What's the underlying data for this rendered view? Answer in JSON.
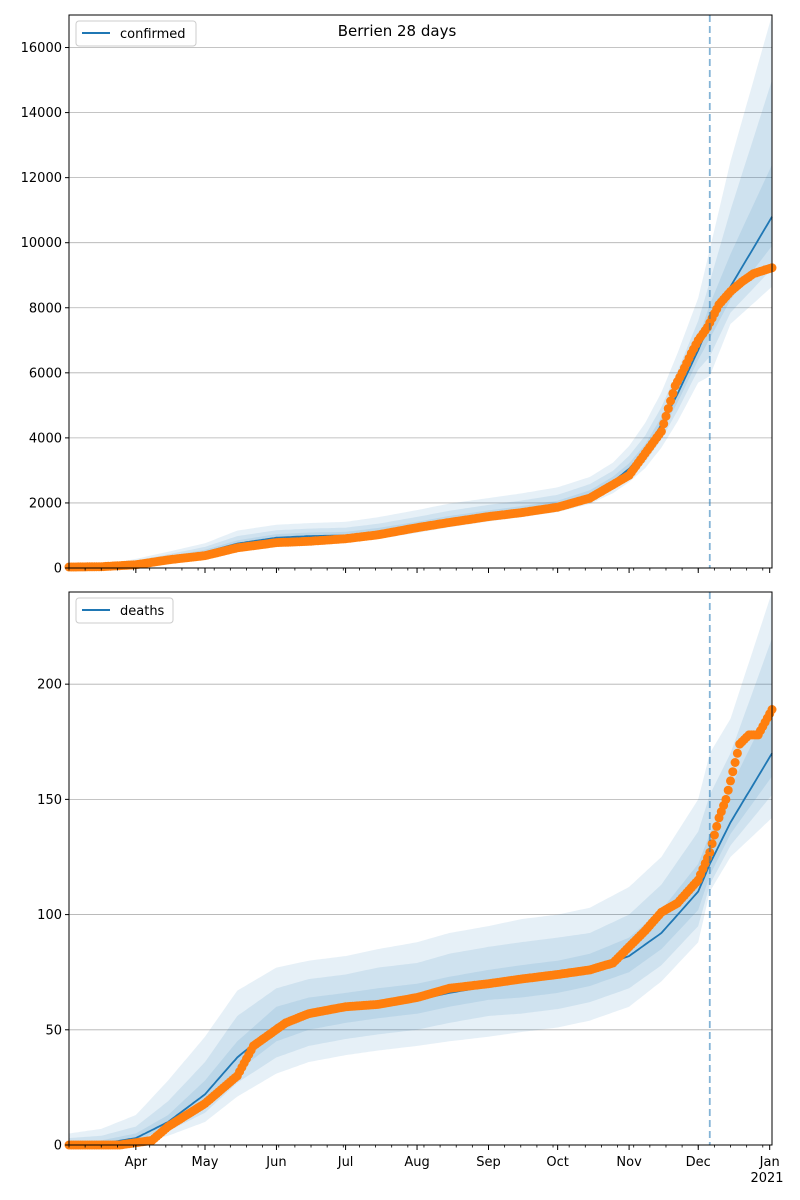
{
  "chart_data": [
    {
      "type": "line",
      "title": "Berrien 28 days",
      "legend": {
        "label": "confirmed",
        "position": "top-left"
      },
      "x_start": "2020-03-03",
      "x_end": "2021-01-02",
      "forecast_start": "2020-12-06",
      "ylim": [
        0,
        17000
      ],
      "yticks": [
        0,
        2000,
        4000,
        6000,
        8000,
        10000,
        12000,
        14000,
        16000
      ],
      "grid": "y",
      "colors": {
        "model": "#1f77b4",
        "observed": "#ff7f0e"
      },
      "model": {
        "dates": [
          "2020-03-03",
          "2020-03-17",
          "2020-04-01",
          "2020-04-15",
          "2020-05-01",
          "2020-05-15",
          "2020-06-01",
          "2020-06-15",
          "2020-07-01",
          "2020-07-15",
          "2020-08-01",
          "2020-08-15",
          "2020-09-01",
          "2020-09-15",
          "2020-10-01",
          "2020-10-15",
          "2020-10-25",
          "2020-11-01",
          "2020-11-08",
          "2020-11-15",
          "2020-11-22",
          "2020-12-01",
          "2020-12-06",
          "2020-12-15",
          "2021-01-02"
        ],
        "median": [
          0,
          20,
          150,
          300,
          480,
          750,
          930,
          980,
          1000,
          1110,
          1300,
          1480,
          1650,
          1780,
          1950,
          2250,
          2650,
          3050,
          3600,
          4400,
          5350,
          6700,
          7550,
          8650,
          10800
        ],
        "bands": [
          {
            "lower": [
              0,
              0,
              80,
              200,
              360,
              560,
              700,
              760,
              790,
              890,
              1080,
              1250,
              1430,
              1560,
              1720,
              1970,
              2300,
              2640,
              3070,
              3700,
              4500,
              5700,
              5900,
              7500,
              8650
            ],
            "upper": [
              50,
              90,
              280,
              500,
              760,
              1150,
              1330,
              1380,
              1420,
              1560,
              1780,
              1980,
              2150,
              2290,
              2480,
              2800,
              3240,
              3750,
              4460,
              5400,
              6600,
              8300,
              9800,
              12500,
              17000
            ]
          },
          {
            "lower": [
              0,
              5,
              100,
              230,
              400,
              620,
              770,
              830,
              860,
              960,
              1150,
              1320,
              1500,
              1630,
              1790,
              2060,
              2420,
              2780,
              3260,
              3960,
              4830,
              6100,
              6500,
              7850,
              9200
            ],
            "upper": [
              35,
              60,
              230,
              420,
              650,
              980,
              1160,
              1210,
              1240,
              1360,
              1570,
              1760,
              1940,
              2070,
              2250,
              2580,
              2990,
              3450,
              4070,
              4950,
              6050,
              7600,
              8800,
              11000,
              15000
            ]
          },
          {
            "lower": [
              0,
              10,
              120,
              260,
              430,
              680,
              840,
              890,
              920,
              1030,
              1220,
              1390,
              1570,
              1700,
              1860,
              2150,
              2530,
              2920,
              3430,
              4180,
              5090,
              6400,
              7050,
              8250,
              9900
            ],
            "upper": [
              20,
              35,
              190,
              360,
              560,
              850,
              1040,
              1090,
              1110,
              1230,
              1420,
              1600,
              1770,
              1900,
              2070,
              2390,
              2810,
              3220,
              3800,
              4640,
              5660,
              7060,
              8100,
              9650,
              12400
            ]
          }
        ]
      },
      "observed": {
        "dates": [
          "2020-03-03",
          "2020-03-17",
          "2020-04-01",
          "2020-04-15",
          "2020-05-01",
          "2020-05-15",
          "2020-06-01",
          "2020-06-15",
          "2020-07-01",
          "2020-07-15",
          "2020-08-01",
          "2020-08-15",
          "2020-09-01",
          "2020-09-15",
          "2020-10-01",
          "2020-10-15",
          "2020-11-01",
          "2020-11-15",
          "2020-11-18",
          "2020-11-21",
          "2020-11-24",
          "2020-11-28",
          "2020-12-01",
          "2020-12-05",
          "2020-12-10",
          "2020-12-15",
          "2020-12-20",
          "2020-12-25",
          "2021-01-02"
        ],
        "values": [
          30,
          40,
          100,
          250,
          380,
          620,
          780,
          820,
          900,
          1020,
          1240,
          1400,
          1580,
          1700,
          1870,
          2150,
          2850,
          4200,
          4900,
          5600,
          6000,
          6600,
          7000,
          7400,
          8100,
          8500,
          8800,
          9050,
          9230
        ]
      }
    },
    {
      "type": "line",
      "title": "",
      "legend": {
        "label": "deaths",
        "position": "top-left"
      },
      "x_start": "2020-03-03",
      "x_end": "2021-01-02",
      "forecast_start": "2020-12-06",
      "ylim": [
        0,
        240
      ],
      "yticks": [
        0,
        50,
        100,
        150,
        200
      ],
      "grid": "y",
      "x_tick_labels": [
        "Apr",
        "May",
        "Jun",
        "Jul",
        "Aug",
        "Sep",
        "Oct",
        "Nov",
        "Dec",
        "Jan"
      ],
      "x_tick_dates": [
        "2020-04-01",
        "2020-05-01",
        "2020-06-01",
        "2020-07-01",
        "2020-08-01",
        "2020-09-01",
        "2020-10-01",
        "2020-11-01",
        "2020-12-01",
        "2021-01-01"
      ],
      "x_year_label": "2021",
      "colors": {
        "model": "#1f77b4",
        "observed": "#ff7f0e"
      },
      "model": {
        "dates": [
          "2020-03-03",
          "2020-03-17",
          "2020-04-01",
          "2020-04-15",
          "2020-05-01",
          "2020-05-15",
          "2020-06-01",
          "2020-06-15",
          "2020-07-01",
          "2020-07-15",
          "2020-08-01",
          "2020-08-15",
          "2020-09-01",
          "2020-09-15",
          "2020-10-01",
          "2020-10-15",
          "2020-11-01",
          "2020-11-15",
          "2020-12-01",
          "2020-12-06",
          "2020-12-15",
          "2021-01-02"
        ],
        "median": [
          0,
          0.5,
          3,
          10,
          22,
          38,
          52,
          57,
          59,
          61,
          63,
          66,
          69,
          71,
          73,
          76,
          82,
          92,
          110,
          122,
          140,
          170
        ],
        "bands": [
          {
            "lower": [
              0,
              0,
              0.5,
              4,
              10,
              21,
              31,
              36,
              39,
              41,
              43,
              45,
              47,
              49,
              51,
              54,
              60,
              71,
              88,
              110,
              125,
              142
            ],
            "upper": [
              5,
              7,
              13,
              28,
              47,
              67,
              77,
              80,
              82,
              85,
              88,
              92,
              95,
              98,
              100,
              103,
              112,
              125,
              150,
              170,
              185,
              240
            ]
          },
          {
            "lower": [
              0,
              0,
              1,
              6,
              14,
              27,
              38,
              43,
              46,
              48,
              50,
              53,
              56,
              57,
              59,
              62,
              68,
              78,
              95,
              113,
              130,
              152
            ],
            "upper": [
              3,
              4,
              8,
              19,
              36,
              56,
              68,
              72,
              74,
              77,
              79,
              83,
              86,
              88,
              90,
              92,
              100,
              113,
              136,
              152,
              170,
              220
            ]
          },
          {
            "lower": [
              0,
              0,
              1.5,
              8,
              18,
              32,
              45,
              50,
              53,
              55,
              57,
              60,
              63,
              64,
              66,
              69,
              75,
              85,
              102,
              117,
              135,
              160
            ],
            "upper": [
              1,
              2,
              5,
              13,
              28,
              45,
              60,
              64,
              66,
              68,
              70,
              73,
              76,
              78,
              80,
              83,
              90,
              102,
              122,
              135,
              155,
              192
            ]
          }
        ]
      },
      "observed": {
        "dates": [
          "2020-03-03",
          "2020-03-25",
          "2020-04-01",
          "2020-04-08",
          "2020-04-15",
          "2020-05-01",
          "2020-05-15",
          "2020-05-22",
          "2020-05-29",
          "2020-06-05",
          "2020-06-15",
          "2020-07-01",
          "2020-07-15",
          "2020-08-01",
          "2020-08-15",
          "2020-09-01",
          "2020-09-15",
          "2020-10-01",
          "2020-10-15",
          "2020-10-25",
          "2020-11-01",
          "2020-11-08",
          "2020-11-15",
          "2020-11-22",
          "2020-12-01",
          "2020-12-06",
          "2020-12-10",
          "2020-12-13",
          "2020-12-16",
          "2020-12-19",
          "2020-12-23",
          "2020-12-27",
          "2021-01-02"
        ],
        "values": [
          0,
          0,
          1,
          2,
          8,
          18,
          30,
          43,
          48,
          53,
          57,
          60,
          61,
          64,
          68,
          70,
          72,
          74,
          76,
          79,
          86,
          93,
          101,
          105,
          115,
          127,
          142,
          150,
          162,
          174,
          178,
          178,
          189
        ]
      }
    }
  ]
}
